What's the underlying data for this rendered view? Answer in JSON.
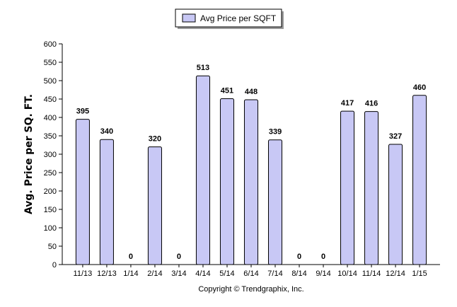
{
  "chart_data": {
    "type": "bar",
    "categories": [
      "11/13",
      "12/13",
      "1/14",
      "2/14",
      "3/14",
      "4/14",
      "5/14",
      "6/14",
      "7/14",
      "8/14",
      "9/14",
      "10/14",
      "11/14",
      "12/14",
      "1/15"
    ],
    "series": [
      {
        "name": "Avg Price per SQFT",
        "values": [
          395,
          340,
          0,
          320,
          0,
          513,
          451,
          448,
          339,
          0,
          0,
          417,
          416,
          327,
          460
        ]
      }
    ],
    "xlabel": "",
    "ylabel": "Avg. Price per SQ. FT.",
    "ylim": [
      0,
      600
    ],
    "yticks": [
      0,
      50,
      100,
      150,
      200,
      250,
      300,
      350,
      400,
      450,
      500,
      550,
      600
    ],
    "grid": false,
    "legend_position": "top-center",
    "bar_fill": "#c8c8f5",
    "bar_stroke": "#000000",
    "footer": "Copyright © Trendgraphix, Inc."
  }
}
